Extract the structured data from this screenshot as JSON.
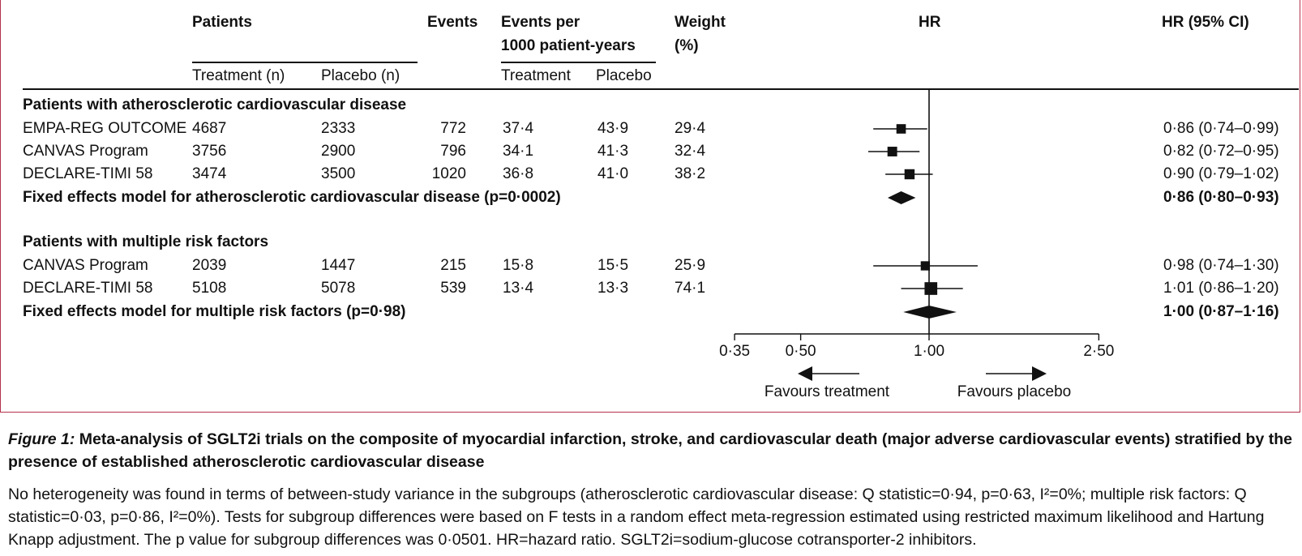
{
  "header": {
    "patients": "Patients",
    "events": "Events",
    "events_per_line1": "Events per",
    "events_per_line2": "1000 patient-years",
    "weight_line1": "Weight",
    "weight_line2": "(%)",
    "hr": "HR",
    "hr_ci": "HR (95% CI)",
    "treatment_n": "Treatment (n)",
    "placebo_n": "Placebo (n)",
    "treatment": "Treatment",
    "placebo": "Placebo"
  },
  "groups": [
    {
      "title": "Patients with atherosclerotic cardiovascular disease",
      "rows": [
        {
          "study": "EMPA-REG OUTCOME",
          "treatment_n": "4687",
          "placebo_n": "2333",
          "events": "772",
          "rate_t": "37·4",
          "rate_p": "43·9",
          "weight": "29·4",
          "hr": 0.86,
          "lo": 0.74,
          "hi": 0.99,
          "ci": "0·86 (0·74–0·99)"
        },
        {
          "study": "CANVAS Program",
          "treatment_n": "3756",
          "placebo_n": "2900",
          "events": "796",
          "rate_t": "34·1",
          "rate_p": "41·3",
          "weight": "32·4",
          "hr": 0.82,
          "lo": 0.72,
          "hi": 0.95,
          "ci": "0·82 (0·72–0·95)"
        },
        {
          "study": "DECLARE-TIMI 58",
          "treatment_n": "3474",
          "placebo_n": "3500",
          "events": "1020",
          "rate_t": "36·8",
          "rate_p": "41·0",
          "weight": "38·2",
          "hr": 0.9,
          "lo": 0.79,
          "hi": 1.02,
          "ci": "0·90 (0·79–1·02)"
        }
      ],
      "summary": {
        "label": "Fixed effects model for atherosclerotic cardiovascular disease (p=0·0002)",
        "hr": 0.86,
        "lo": 0.8,
        "hi": 0.93,
        "ci": "0·86 (0·80–0·93)"
      }
    },
    {
      "title": "Patients with multiple risk factors",
      "rows": [
        {
          "study": "CANVAS Program",
          "treatment_n": "2039",
          "placebo_n": "1447",
          "events": "215",
          "rate_t": "15·8",
          "rate_p": "15·5",
          "weight": "25·9",
          "hr": 0.98,
          "lo": 0.74,
          "hi": 1.3,
          "ci": "0·98 (0·74–1·30)"
        },
        {
          "study": "DECLARE-TIMI 58",
          "treatment_n": "5108",
          "placebo_n": "5078",
          "events": "539",
          "rate_t": "13·4",
          "rate_p": "13·3",
          "weight": "74·1",
          "hr": 1.01,
          "lo": 0.86,
          "hi": 1.2,
          "ci": "1·01 (0·86–1·20)"
        }
      ],
      "summary": {
        "label": "Fixed effects model for multiple risk factors (p=0·98)",
        "hr": 1.0,
        "lo": 0.87,
        "hi": 1.16,
        "ci": "1·00 (0·87–1·16)"
      }
    }
  ],
  "axis": {
    "scale": "log",
    "ticks": [
      {
        "value": 0.35,
        "label": "0·35"
      },
      {
        "value": 0.5,
        "label": "0·50"
      },
      {
        "value": 1.0,
        "label": "1·00"
      },
      {
        "value": 2.5,
        "label": "2·50"
      }
    ],
    "favours_treatment": "Favours treatment",
    "favours_placebo": "Favours placebo"
  },
  "caption": {
    "figure_label": "Figure 1:",
    "title": "Meta-analysis of SGLT2i trials on the composite of myocardial infarction, stroke, and cardiovascular death (major adverse cardiovascular events) stratified by the presence of established atherosclerotic cardiovascular disease",
    "body_part1": "No heterogeneity was found in terms of between-study variance in the subgroups (atherosclerotic cardiovascular disease: Q statistic=0·94, p=0·63, ",
    "i2_a": "I²=0%; multiple risk factors: Q statistic=0·03, p=0·86, ",
    "i2_b": "I²=0%). Tests for subgroup differences were based on F tests in a random effect meta-regression estimated using restricted maximum likelihood and Hartung Knapp adjustment. The p value for subgroup differences was 0·0501. HR=hazard ratio. SGLT2i=sodium-glucose cotransporter-2 inhibitors."
  },
  "colors": {
    "frame": "#b3314b",
    "ink": "#111111"
  }
}
